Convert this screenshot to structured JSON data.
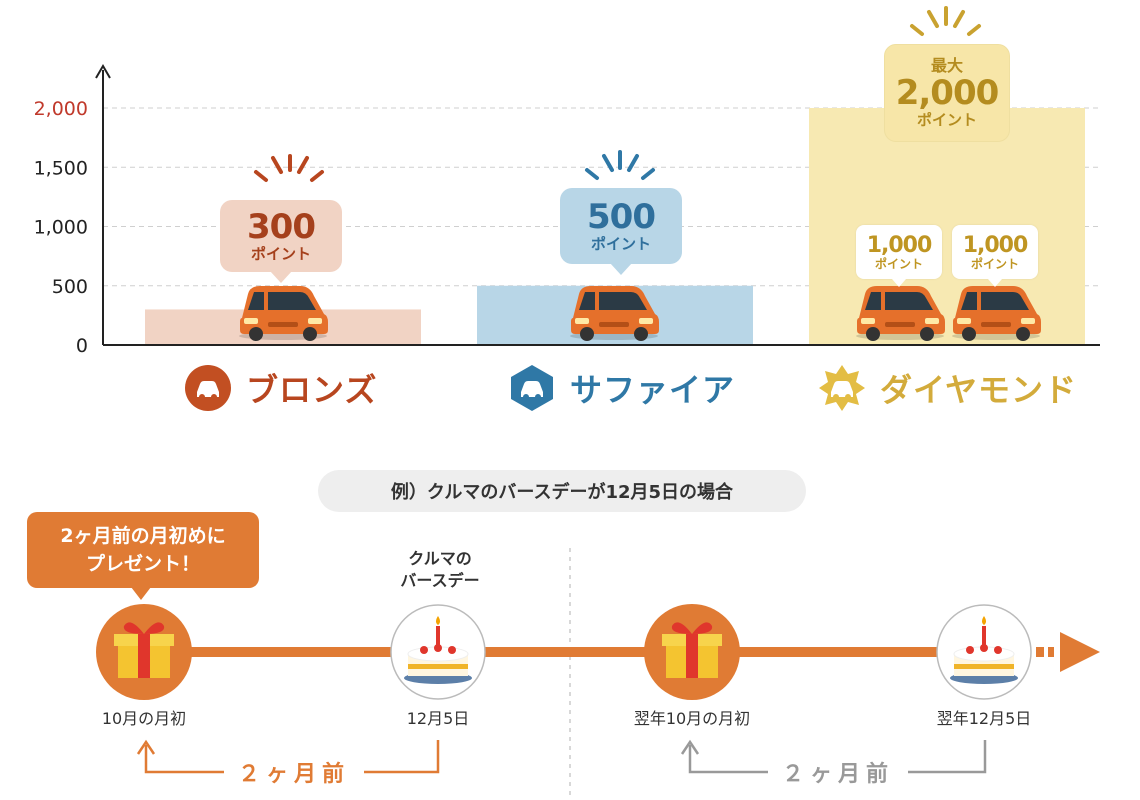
{
  "chart_data": {
    "type": "bar",
    "categories": [
      "ブロンズ",
      "サファイア",
      "ダイヤモンド"
    ],
    "values": [
      300,
      500,
      2000
    ],
    "ylim": [
      0,
      2000
    ],
    "y_ticks": [
      "0",
      "500",
      "1,000",
      "1,500",
      "2,000"
    ],
    "grid": true,
    "colors": [
      "#f1d3c4",
      "#b8d6e7",
      "#f7e9b2"
    ]
  },
  "bubbles": {
    "bronze": {
      "value": "300",
      "unit": "ポイント"
    },
    "sapphire": {
      "value": "500",
      "unit": "ポイント"
    },
    "diamond": {
      "prefix": "最大",
      "value": "2,000",
      "unit": "ポイント"
    },
    "diamond_sub": [
      {
        "value": "1,000",
        "unit": "ポイント"
      },
      {
        "value": "1,000",
        "unit": "ポイント"
      }
    ]
  },
  "tiers": [
    {
      "name": "ブロンズ",
      "color": "#b8461f"
    },
    {
      "name": "サファイア",
      "color": "#2f78a6"
    },
    {
      "name": "ダイヤモンド",
      "color": "#d3ab3b"
    }
  ],
  "timeline": {
    "example": "例）クルマのバースデーが12月5日の場合",
    "callout": [
      "2ヶ月前の月初めに",
      "プレゼント！"
    ],
    "birthday_label": [
      "クルマの",
      "バースデー"
    ],
    "points": [
      "10月の月初",
      "12月5日",
      "翌年10月の月初",
      "翌年12月5日"
    ],
    "gap_label": "２ヶ月前",
    "gap_label_2": "２ヶ月前",
    "accent": "#e07b34",
    "muted": "#999999"
  },
  "icons": [
    "car-icon",
    "gift-box-icon",
    "birthday-cake-icon",
    "sparkle-icon",
    "arrow-right-icon"
  ]
}
